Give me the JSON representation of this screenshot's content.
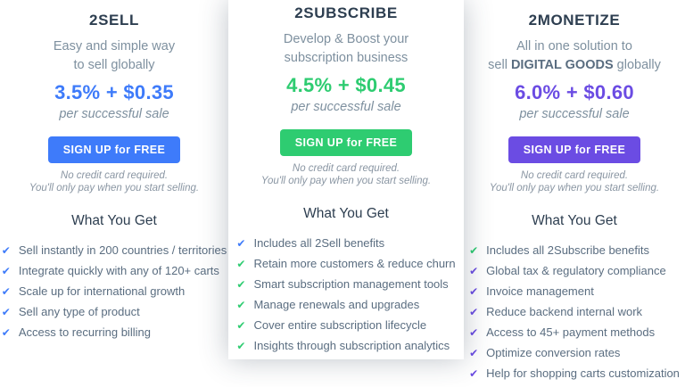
{
  "plans": [
    {
      "name": "2SELL",
      "desc_lines": [
        "Easy and simple way",
        "to sell globally"
      ],
      "price": "3.5% + $0.35",
      "price_note": "per successful sale",
      "button_label": "SIGN UP for FREE",
      "disclaimer_lines": [
        "No credit card required.",
        "You'll only pay when you start selling."
      ],
      "features_title": "What You Get",
      "accent": "#3e7bfa",
      "features": [
        {
          "text": "Sell instantly in 200 countries / territories",
          "check": "#3e7bfa"
        },
        {
          "text": "Integrate quickly with any of 120+ carts",
          "check": "#3e7bfa"
        },
        {
          "text": "Scale up for international growth",
          "check": "#3e7bfa"
        },
        {
          "text": "Sell any type of product",
          "check": "#3e7bfa"
        },
        {
          "text": "Access to recurring billing",
          "check": "#3e7bfa"
        }
      ]
    },
    {
      "name": "2SUBSCRIBE",
      "desc_lines": [
        "Develop & Boost your",
        "subscription business"
      ],
      "price": "4.5% + $0.45",
      "price_note": "per successful sale",
      "button_label": "SIGN UP for FREE",
      "disclaimer_lines": [
        "No credit card required.",
        "You'll only pay when you start selling."
      ],
      "features_title": "What You Get",
      "accent": "#2ecc71",
      "features": [
        {
          "text": "Includes all 2Sell benefits",
          "check": "#3e7bfa"
        },
        {
          "text": "Retain more customers & reduce churn",
          "check": "#2ecc71"
        },
        {
          "text": "Smart subscription management tools",
          "check": "#2ecc71"
        },
        {
          "text": "Manage renewals and upgrades",
          "check": "#2ecc71"
        },
        {
          "text": "Cover entire subscription lifecycle",
          "check": "#2ecc71"
        },
        {
          "text": "Insights through subscription analytics",
          "check": "#2ecc71"
        }
      ]
    },
    {
      "name": "2MONETIZE",
      "desc_lines": [
        "All in one solution to"
      ],
      "desc_line2": {
        "pre": "sell ",
        "bold": "DIGITAL GOODS",
        "post": " globally"
      },
      "price": "6.0% + $0.60",
      "price_note": "per successful sale",
      "button_label": "SIGN UP for FREE",
      "disclaimer_lines": [
        "No credit card required.",
        "You'll only pay when you start selling."
      ],
      "features_title": "What You Get",
      "accent": "#6b4ce3",
      "features": [
        {
          "text": "Includes all 2Subscribe benefits",
          "check": "#2ecc71"
        },
        {
          "text": "Global tax & regulatory compliance",
          "check": "#6b4ce3"
        },
        {
          "text": "Invoice management",
          "check": "#6b4ce3"
        },
        {
          "text": "Reduce backend internal work",
          "check": "#6b4ce3"
        },
        {
          "text": "Access to 45+ payment methods",
          "check": "#6b4ce3"
        },
        {
          "text": "Optimize conversion rates",
          "check": "#6b4ce3"
        },
        {
          "text": "Help for shopping carts customization",
          "check": "#6b4ce3"
        }
      ]
    }
  ]
}
